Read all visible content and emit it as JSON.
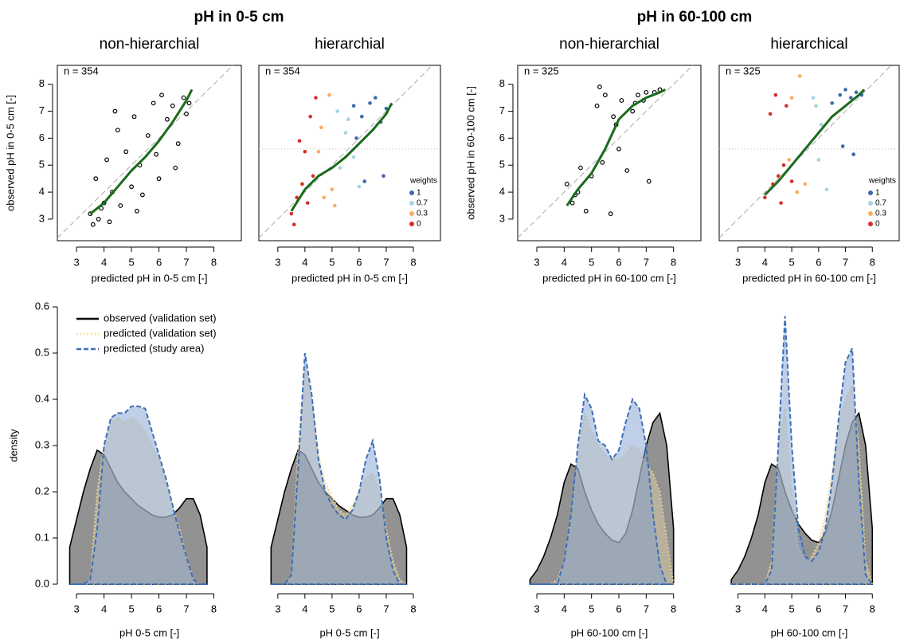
{
  "header": {
    "titles": [
      "pH in 0-5 cm",
      "pH in 60-100 cm"
    ]
  },
  "chart_data": [
    {
      "type": "scatter",
      "title": "non-hierarchial",
      "xlabel": "predicted pH in 0-5 cm [-]",
      "ylabel": "observed pH in 0-5 cm [-]",
      "annotation": "n = 354",
      "marker": "open",
      "xlim": [
        2.3,
        9
      ],
      "ylim": [
        2.2,
        8.7
      ],
      "xticks": [
        3,
        4,
        5,
        6,
        7,
        8
      ],
      "yticks": [
        3,
        4,
        5,
        6,
        7,
        8
      ],
      "series": [
        {
          "color": "#000000",
          "x": [
            3.5,
            3.7,
            3.8,
            4.0,
            4.1,
            4.2,
            4.3,
            4.5,
            4.6,
            4.8,
            5.0,
            5.1,
            5.3,
            5.4,
            5.6,
            5.8,
            6.0,
            6.1,
            6.3,
            6.5,
            6.7,
            6.9,
            7.0,
            7.1,
            3.9,
            4.4,
            5.2,
            5.9,
            6.6,
            3.6
          ],
          "values": [
            3.2,
            4.5,
            3.0,
            3.6,
            5.2,
            2.9,
            4.0,
            6.3,
            3.5,
            5.5,
            4.2,
            6.8,
            5.0,
            3.9,
            6.1,
            7.3,
            4.5,
            7.6,
            6.7,
            7.2,
            5.8,
            7.5,
            6.9,
            7.3,
            3.4,
            7.0,
            3.3,
            5.4,
            4.9,
            2.8
          ]
        }
      ],
      "fit_line": {
        "color": "#1a6b1a",
        "x": [
          3.5,
          4.0,
          4.5,
          5.0,
          5.5,
          6.0,
          6.5,
          7.0,
          7.2
        ],
        "y": [
          3.2,
          3.6,
          4.2,
          4.8,
          5.3,
          5.9,
          6.6,
          7.4,
          7.8
        ]
      }
    },
    {
      "type": "scatter",
      "title": "hierarchial",
      "xlabel": "predicted pH in 0-5 cm [-]",
      "annotation": "n = 354",
      "legend_title": "weights",
      "legend": "right",
      "threshold": 5.6,
      "xlim": [
        2.3,
        9
      ],
      "ylim": [
        2.2,
        8.7
      ],
      "xticks": [
        3,
        4,
        5,
        6,
        7,
        8
      ],
      "series": [
        {
          "name": "1",
          "color": "#3b6aab",
          "x": [
            5.8,
            6.1,
            6.4,
            6.6,
            6.8,
            7.0,
            6.2,
            5.9,
            6.9
          ],
          "values": [
            7.2,
            6.8,
            7.3,
            7.5,
            6.6,
            7.1,
            4.4,
            6.0,
            4.6
          ]
        },
        {
          "name": "0.7",
          "color": "#a6d4e6",
          "x": [
            5.2,
            5.5,
            5.8,
            6.0,
            5.3,
            5.6
          ],
          "values": [
            7.0,
            6.2,
            5.3,
            4.2,
            4.9,
            6.7
          ]
        },
        {
          "name": "0.3",
          "color": "#f9ad5f",
          "x": [
            4.5,
            4.7,
            4.9,
            5.0,
            5.1,
            4.6
          ],
          "values": [
            5.5,
            3.8,
            7.6,
            4.1,
            3.5,
            6.4
          ]
        },
        {
          "name": "0",
          "color": "#d63027",
          "x": [
            3.5,
            3.7,
            3.9,
            4.0,
            4.2,
            4.3,
            4.4,
            3.6,
            4.1,
            3.8
          ],
          "values": [
            3.2,
            3.8,
            4.3,
            5.5,
            6.8,
            4.6,
            7.5,
            2.8,
            3.6,
            5.9
          ]
        }
      ],
      "fit_line": {
        "color": "#1a6b1a",
        "x": [
          3.5,
          4.0,
          4.5,
          5.0,
          5.5,
          6.0,
          6.5,
          7.0,
          7.2
        ],
        "y": [
          3.3,
          4.1,
          4.6,
          4.9,
          5.3,
          5.8,
          6.3,
          6.9,
          7.3
        ]
      }
    },
    {
      "type": "scatter",
      "title": "non-hierarchial",
      "xlabel": "predicted pH in 60-100 cm [-]",
      "ylabel": "observed pH in 60-100 cm [-]",
      "annotation": "n = 325",
      "marker": "open",
      "xlim": [
        2.3,
        9
      ],
      "ylim": [
        2.2,
        8.7
      ],
      "xticks": [
        3,
        4,
        5,
        6,
        7,
        8
      ],
      "yticks": [
        3,
        4,
        5,
        6,
        7,
        8
      ],
      "series": [
        {
          "color": "#000000",
          "x": [
            4.1,
            4.3,
            4.5,
            4.6,
            4.8,
            5.0,
            5.2,
            5.4,
            5.5,
            5.7,
            5.9,
            6.1,
            6.3,
            6.5,
            6.7,
            6.9,
            7.1,
            7.3,
            7.5,
            5.3,
            6.0,
            4.4,
            6.6,
            7.0,
            5.8
          ],
          "values": [
            4.3,
            3.6,
            4.0,
            4.9,
            3.3,
            4.6,
            7.2,
            5.1,
            7.6,
            3.2,
            6.5,
            7.4,
            4.8,
            7.0,
            7.6,
            7.4,
            4.4,
            7.7,
            7.8,
            7.9,
            5.6,
            3.9,
            7.3,
            7.7,
            6.8
          ]
        }
      ],
      "fit_line": {
        "color": "#1a6b1a",
        "x": [
          4.1,
          4.5,
          5.0,
          5.5,
          6.0,
          6.5,
          7.0,
          7.5,
          7.7
        ],
        "y": [
          3.5,
          4.1,
          4.7,
          5.6,
          6.7,
          7.2,
          7.5,
          7.7,
          7.8
        ]
      }
    },
    {
      "type": "scatter",
      "title": "hierarchical",
      "xlabel": "predicted pH in 60-100 cm [-]",
      "annotation": "n = 325",
      "legend_title": "weights",
      "legend": "right",
      "threshold": 5.6,
      "xlim": [
        2.3,
        9
      ],
      "ylim": [
        2.2,
        8.7
      ],
      "xticks": [
        3,
        4,
        5,
        6,
        7,
        8
      ],
      "series": [
        {
          "name": "1",
          "color": "#3b6aab",
          "x": [
            6.5,
            6.8,
            7.0,
            7.2,
            7.4,
            7.6,
            6.9,
            7.3
          ],
          "values": [
            7.3,
            7.6,
            7.8,
            7.5,
            7.7,
            7.6,
            5.7,
            5.4
          ]
        },
        {
          "name": "0.7",
          "color": "#a6d4e6",
          "x": [
            5.8,
            6.1,
            6.3,
            6.0,
            5.9
          ],
          "values": [
            7.5,
            6.5,
            4.1,
            5.2,
            7.2
          ]
        },
        {
          "name": "0.3",
          "color": "#f9ad5f",
          "x": [
            5.0,
            5.3,
            5.5,
            4.9,
            5.2
          ],
          "values": [
            7.5,
            8.3,
            4.3,
            5.2,
            4.0
          ]
        },
        {
          "name": "0",
          "color": "#d63027",
          "x": [
            4.0,
            4.3,
            4.5,
            4.7,
            4.8,
            4.2,
            4.6,
            4.4,
            5.0
          ],
          "values": [
            3.8,
            4.3,
            4.6,
            5.0,
            7.2,
            6.9,
            3.6,
            7.6,
            4.4
          ]
        }
      ],
      "fit_line": {
        "color": "#1a6b1a",
        "x": [
          4.0,
          4.5,
          5.0,
          5.5,
          6.0,
          6.5,
          7.0,
          7.5,
          7.7
        ],
        "y": [
          3.9,
          4.4,
          5.0,
          5.6,
          6.2,
          6.8,
          7.2,
          7.6,
          7.8
        ]
      }
    },
    {
      "type": "area",
      "xlabel": "pH 0-5 cm [-]",
      "ylabel": "density",
      "legend": "top-left",
      "xlim": [
        2.3,
        9
      ],
      "ylim": [
        0,
        0.6
      ],
      "xticks": [
        3,
        4,
        5,
        6,
        7,
        8
      ],
      "yticks": [
        {
          "value": 0,
          "label": "0.0"
        },
        0.1,
        0.2,
        0.3,
        0.4,
        0.5,
        0.6
      ],
      "x": [
        2.75,
        3.0,
        3.25,
        3.5,
        3.75,
        4.0,
        4.25,
        4.5,
        4.75,
        5.0,
        5.25,
        5.5,
        5.75,
        6.0,
        6.25,
        6.5,
        6.75,
        7.0,
        7.25,
        7.5,
        7.75
      ],
      "series": [
        {
          "name": "observed (validation set)",
          "color": "#000000",
          "values": [
            0.08,
            0.14,
            0.2,
            0.25,
            0.29,
            0.28,
            0.25,
            0.22,
            0.2,
            0.185,
            0.17,
            0.16,
            0.15,
            0.145,
            0.145,
            0.15,
            0.165,
            0.185,
            0.185,
            0.15,
            0.08
          ]
        },
        {
          "name": "predicted (validation set)",
          "color": "#f4d48e",
          "values": [
            0,
            0,
            0,
            0.01,
            0.2,
            0.3,
            0.35,
            0.36,
            0.35,
            0.36,
            0.35,
            0.33,
            0.3,
            0.27,
            0.22,
            0.17,
            0.12,
            0.06,
            0.01,
            0,
            0
          ]
        },
        {
          "name": "predicted (study area)",
          "color": "#3e6fb5",
          "values": [
            0,
            0,
            0,
            0.01,
            0.12,
            0.3,
            0.36,
            0.37,
            0.37,
            0.385,
            0.385,
            0.38,
            0.33,
            0.28,
            0.23,
            0.17,
            0.11,
            0.06,
            0.01,
            0,
            0
          ]
        }
      ]
    },
    {
      "type": "area",
      "xlabel": "pH 0-5 cm [-]",
      "xlim": [
        2.3,
        9
      ],
      "ylim": [
        0,
        0.6
      ],
      "xticks": [
        3,
        4,
        5,
        6,
        7,
        8
      ],
      "x": [
        2.75,
        3.0,
        3.25,
        3.5,
        3.75,
        4.0,
        4.25,
        4.5,
        4.75,
        5.0,
        5.25,
        5.5,
        5.75,
        6.0,
        6.25,
        6.5,
        6.75,
        7.0,
        7.25,
        7.5,
        7.75
      ],
      "series": [
        {
          "color": "#000000",
          "values": [
            0.08,
            0.14,
            0.2,
            0.25,
            0.29,
            0.28,
            0.25,
            0.22,
            0.2,
            0.185,
            0.17,
            0.16,
            0.15,
            0.145,
            0.145,
            0.15,
            0.165,
            0.185,
            0.185,
            0.15,
            0.08
          ]
        },
        {
          "color": "#f4d48e",
          "values": [
            0,
            0,
            0,
            0.02,
            0.3,
            0.47,
            0.4,
            0.28,
            0.22,
            0.19,
            0.16,
            0.15,
            0.17,
            0.2,
            0.23,
            0.24,
            0.2,
            0.12,
            0.05,
            0.01,
            0
          ]
        },
        {
          "color": "#3e6fb5",
          "values": [
            0,
            0,
            0,
            0.02,
            0.25,
            0.5,
            0.41,
            0.27,
            0.2,
            0.17,
            0.15,
            0.14,
            0.16,
            0.2,
            0.27,
            0.31,
            0.23,
            0.1,
            0.03,
            0,
            0
          ]
        }
      ]
    },
    {
      "type": "area",
      "xlabel": "pH 60-100 cm [-]",
      "xlim": [
        2.3,
        9
      ],
      "ylim": [
        0,
        0.6
      ],
      "xticks": [
        3,
        4,
        5,
        6,
        7,
        8
      ],
      "x": [
        2.75,
        3.0,
        3.25,
        3.5,
        3.75,
        4.0,
        4.25,
        4.5,
        4.75,
        5.0,
        5.25,
        5.5,
        5.75,
        6.0,
        6.25,
        6.5,
        6.75,
        7.0,
        7.25,
        7.5,
        7.75,
        8.0
      ],
      "series": [
        {
          "color": "#000000",
          "values": [
            0.01,
            0.03,
            0.06,
            0.1,
            0.15,
            0.22,
            0.26,
            0.25,
            0.2,
            0.16,
            0.13,
            0.11,
            0.095,
            0.09,
            0.11,
            0.16,
            0.23,
            0.3,
            0.35,
            0.37,
            0.3,
            0.12
          ]
        },
        {
          "color": "#f4d48e",
          "values": [
            0,
            0,
            0,
            0,
            0.01,
            0.05,
            0.15,
            0.27,
            0.37,
            0.33,
            0.3,
            0.28,
            0.27,
            0.27,
            0.28,
            0.3,
            0.29,
            0.26,
            0.24,
            0.2,
            0.1,
            0
          ]
        },
        {
          "color": "#3e6fb5",
          "values": [
            0,
            0,
            0,
            0,
            0,
            0.05,
            0.15,
            0.3,
            0.41,
            0.38,
            0.31,
            0.3,
            0.27,
            0.29,
            0.35,
            0.4,
            0.38,
            0.3,
            0.15,
            0.04,
            0,
            0
          ]
        }
      ]
    },
    {
      "type": "area",
      "xlabel": "pH 60-100 cm [-]",
      "xlim": [
        2.3,
        9
      ],
      "ylim": [
        0,
        0.6
      ],
      "xticks": [
        3,
        4,
        5,
        6,
        7,
        8
      ],
      "x": [
        2.75,
        3.0,
        3.25,
        3.5,
        3.75,
        4.0,
        4.25,
        4.5,
        4.75,
        5.0,
        5.25,
        5.5,
        5.75,
        6.0,
        6.25,
        6.5,
        6.75,
        7.0,
        7.25,
        7.5,
        7.75,
        8.0
      ],
      "series": [
        {
          "color": "#000000",
          "values": [
            0.01,
            0.03,
            0.06,
            0.1,
            0.15,
            0.22,
            0.26,
            0.25,
            0.2,
            0.16,
            0.13,
            0.11,
            0.095,
            0.09,
            0.11,
            0.16,
            0.23,
            0.3,
            0.35,
            0.37,
            0.3,
            0.12
          ]
        },
        {
          "color": "#f4d48e",
          "values": [
            0,
            0,
            0,
            0,
            0,
            0,
            0.05,
            0.3,
            0.38,
            0.2,
            0.08,
            0.05,
            0.06,
            0.09,
            0.15,
            0.24,
            0.34,
            0.4,
            0.43,
            0.3,
            0.05,
            0
          ]
        },
        {
          "color": "#3e6fb5",
          "values": [
            0,
            0,
            0,
            0,
            0,
            0,
            0.03,
            0.3,
            0.58,
            0.3,
            0.12,
            0.06,
            0.05,
            0.07,
            0.12,
            0.22,
            0.36,
            0.48,
            0.51,
            0.22,
            0.02,
            0
          ]
        }
      ]
    }
  ]
}
